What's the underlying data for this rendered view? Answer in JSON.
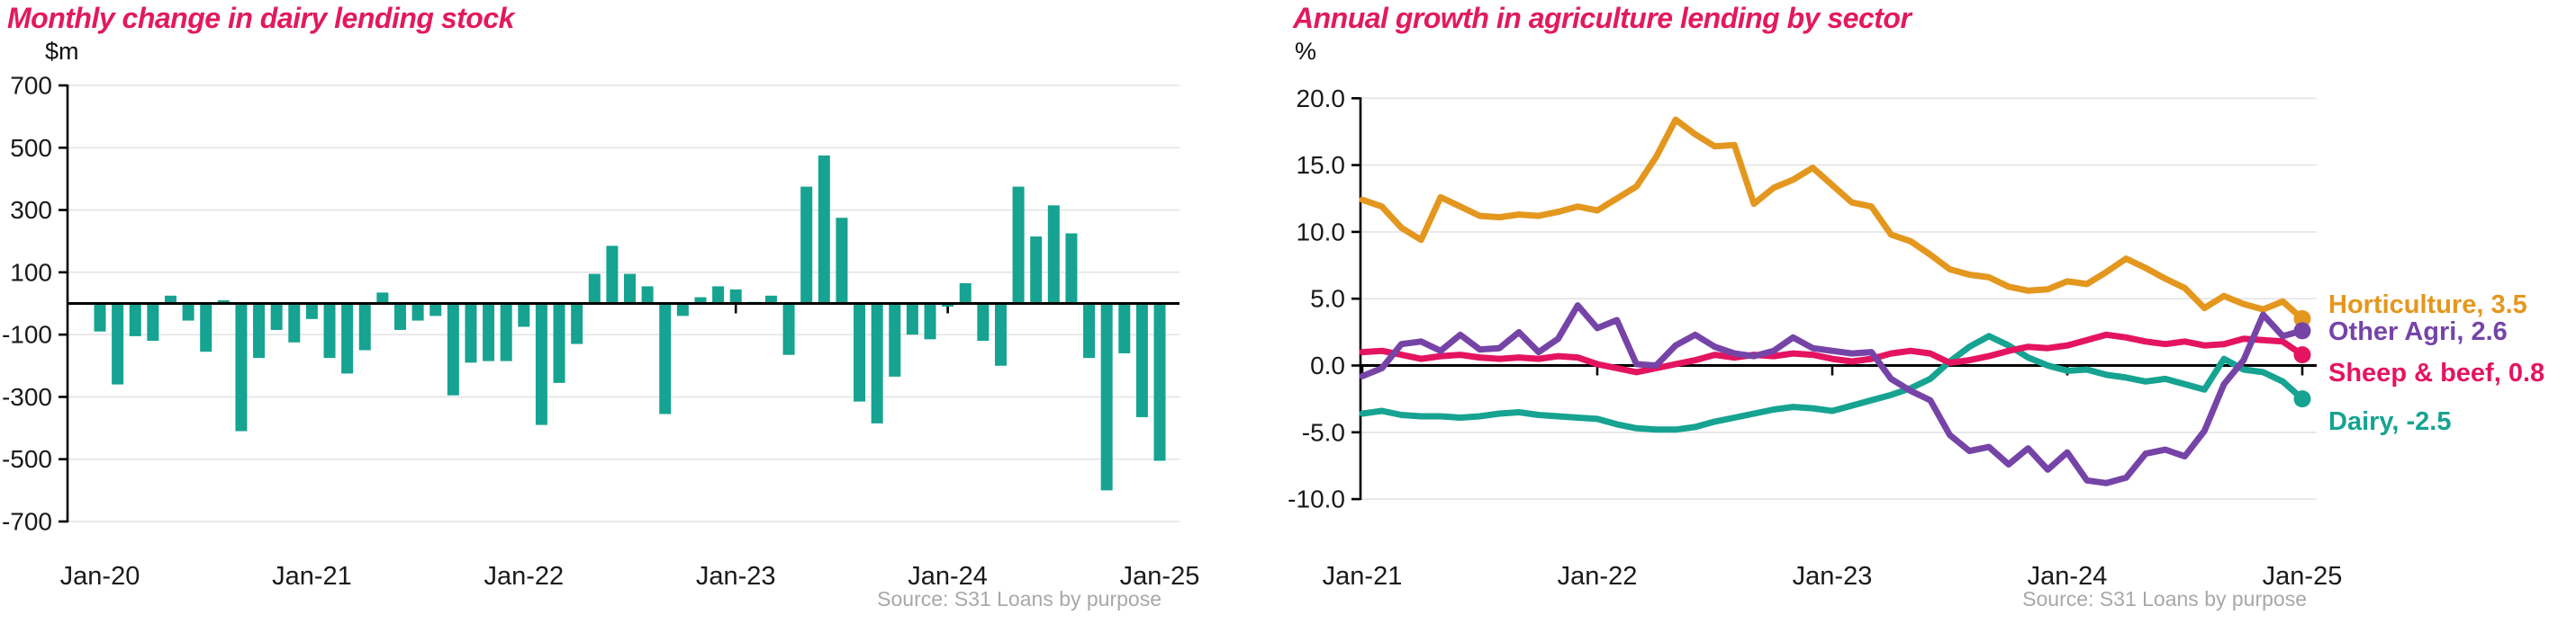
{
  "colors": {
    "title_pink": "#e2195f",
    "teal": "#16a391",
    "orange": "#e4971e",
    "purple": "#7644a7",
    "crimson": "#e41460",
    "gridline": "#e4e4e8",
    "axis_black": "#000000",
    "tick_text": "#1a1a1a",
    "source_gray": "#a8a8a8"
  },
  "chart_data": [
    {
      "type": "bar",
      "title": "Monthly change in dairy lending stock",
      "unit_label": "$m",
      "source": "Source:  S31 Loans by purpose",
      "bar_color": "#16a391",
      "x_start": "Jan-20",
      "frequency": "monthly",
      "x_tick_labels": [
        "Jan-20",
        "Jan-21",
        "Jan-22",
        "Jan-23",
        "Jan-24",
        "Jan-25"
      ],
      "x_tick_indices": [
        0,
        12,
        24,
        36,
        48,
        60
      ],
      "y_ticks": [
        700,
        500,
        300,
        100,
        -100,
        -300,
        -500,
        -700
      ],
      "ylim": [
        -700,
        700
      ],
      "grid": true,
      "values": [
        -90,
        -260,
        -105,
        -120,
        25,
        -55,
        -155,
        10,
        -410,
        -175,
        -85,
        -125,
        -50,
        -175,
        -225,
        -150,
        35,
        -85,
        -55,
        -40,
        -295,
        -190,
        -185,
        -185,
        -75,
        -390,
        -255,
        -130,
        95,
        185,
        95,
        55,
        -355,
        -40,
        20,
        55,
        45,
        5,
        25,
        -165,
        375,
        475,
        275,
        -315,
        -385,
        -235,
        -100,
        -115,
        -10,
        65,
        -120,
        -200,
        375,
        215,
        315,
        225,
        -175,
        -600,
        -160,
        -365,
        -505
      ]
    },
    {
      "type": "line",
      "title": "Annual growth in agriculture lending by sector",
      "unit_label": "%",
      "source": "Source:  S31 Loans by purpose",
      "x_start": "Jan-21",
      "frequency": "monthly",
      "x_tick_labels": [
        "Jan-21",
        "Jan-22",
        "Jan-23",
        "Jan-24",
        "Jan-25"
      ],
      "x_tick_indices": [
        0,
        12,
        24,
        36,
        48
      ],
      "y_ticks": [
        20,
        15,
        10,
        5,
        0,
        -5,
        -10
      ],
      "y_tick_labels": [
        "20.0",
        "15.0",
        "10.0",
        "5.0",
        "0.0",
        "-5.0",
        "-10.0"
      ],
      "ylim": [
        -10,
        20
      ],
      "grid": true,
      "legend_position": "right-of-plot",
      "series": [
        {
          "name": "Horticulture",
          "label": "Horticulture, 3.5",
          "end_value": 3.5,
          "color": "#e4971e",
          "values": [
            12.4,
            11.9,
            10.3,
            9.4,
            12.6,
            11.9,
            11.2,
            11.1,
            11.3,
            11.2,
            11.5,
            11.9,
            11.6,
            12.5,
            13.4,
            15.6,
            18.4,
            17.3,
            16.4,
            16.5,
            12.1,
            13.3,
            13.9,
            14.8,
            13.5,
            12.2,
            11.9,
            9.8,
            9.3,
            8.3,
            7.2,
            6.8,
            6.6,
            5.9,
            5.6,
            5.7,
            6.3,
            6.1,
            7.0,
            8.0,
            7.3,
            6.5,
            5.8,
            4.3,
            5.2,
            4.6,
            4.2,
            4.8,
            3.5
          ]
        },
        {
          "name": "Other Agri",
          "label": "Other Agri, 2.6",
          "end_value": 2.6,
          "color": "#7644a7",
          "values": [
            -0.8,
            -0.2,
            1.6,
            1.8,
            1.1,
            2.3,
            1.2,
            1.3,
            2.5,
            1.0,
            2.0,
            4.5,
            2.8,
            3.4,
            0.1,
            0.0,
            1.5,
            2.3,
            1.4,
            0.9,
            0.7,
            1.1,
            2.1,
            1.3,
            1.1,
            0.9,
            1.0,
            -1.0,
            -1.9,
            -2.6,
            -5.2,
            -6.4,
            -6.1,
            -7.4,
            -6.2,
            -7.8,
            -6.5,
            -8.6,
            -8.8,
            -8.4,
            -6.6,
            -6.3,
            -6.8,
            -4.9,
            -1.4,
            0.4,
            3.8,
            2.2,
            2.6
          ]
        },
        {
          "name": "Sheep & beef",
          "label": "Sheep & beef, 0.8",
          "end_value": 0.8,
          "color": "#e41460",
          "values": [
            1.0,
            1.1,
            0.8,
            0.5,
            0.7,
            0.8,
            0.6,
            0.5,
            0.6,
            0.5,
            0.7,
            0.6,
            0.1,
            -0.2,
            -0.5,
            -0.2,
            0.1,
            0.4,
            0.8,
            0.6,
            0.8,
            0.7,
            0.9,
            0.8,
            0.5,
            0.3,
            0.5,
            0.9,
            1.1,
            0.9,
            0.2,
            0.4,
            0.7,
            1.1,
            1.4,
            1.3,
            1.5,
            1.9,
            2.3,
            2.1,
            1.8,
            1.6,
            1.8,
            1.5,
            1.6,
            2.0,
            1.9,
            1.8,
            0.8
          ]
        },
        {
          "name": "Dairy",
          "label": "Dairy, -2.5",
          "end_value": -2.5,
          "color": "#16a391",
          "values": [
            -3.6,
            -3.4,
            -3.7,
            -3.8,
            -3.8,
            -3.9,
            -3.8,
            -3.6,
            -3.5,
            -3.7,
            -3.8,
            -3.9,
            -4.0,
            -4.4,
            -4.7,
            -4.8,
            -4.8,
            -4.6,
            -4.2,
            -3.9,
            -3.6,
            -3.3,
            -3.1,
            -3.2,
            -3.4,
            -3.0,
            -2.6,
            -2.2,
            -1.7,
            -1.0,
            0.3,
            1.4,
            2.2,
            1.5,
            0.6,
            0.0,
            -0.4,
            -0.3,
            -0.7,
            -0.9,
            -1.2,
            -1.0,
            -1.4,
            -1.8,
            0.5,
            -0.3,
            -0.5,
            -1.2,
            -2.5
          ]
        }
      ]
    }
  ]
}
